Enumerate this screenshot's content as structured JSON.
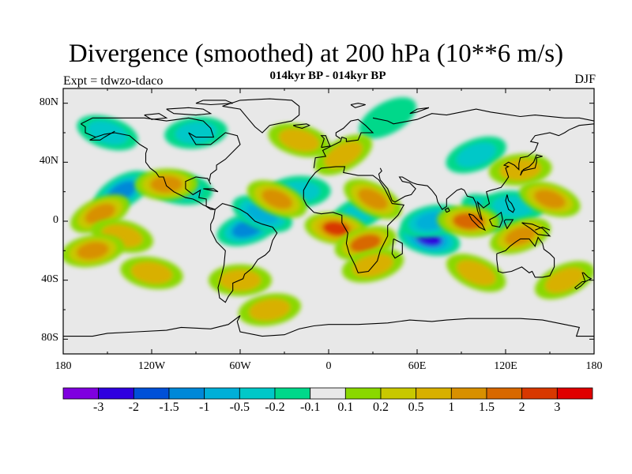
{
  "title": "Divergence (smoothed) at 200 hPa (10**6 m/s)",
  "subtitle": "014kyr BP - 014kyr BP",
  "experiment": "Expt = tdwzo-tdaco",
  "season": "DJF",
  "map": {
    "projection": "cylindrical-equidistant",
    "lon_range": [
      -180,
      180
    ],
    "lat_range": [
      -90,
      90
    ],
    "background_color": "#e8e8e8",
    "coastline_color": "#000000"
  },
  "axes": {
    "y_ticks": [
      "80N",
      "40N",
      "0",
      "40S",
      "80S"
    ],
    "x_ticks": [
      "180",
      "120W",
      "60W",
      "0",
      "60E",
      "120E",
      "180"
    ]
  },
  "colorbar": {
    "colors": [
      "#7f00df",
      "#2f00df",
      "#0050d8",
      "#0088d8",
      "#00afd8",
      "#00c8c8",
      "#00d88a",
      "#e8e8e8",
      "#8ad800",
      "#c8c800",
      "#d8b000",
      "#d89000",
      "#d86800",
      "#d83800",
      "#df0000"
    ],
    "labels": [
      "-3",
      "-2",
      "-1.5",
      "-1",
      "-0.5",
      "-0.2",
      "-0.1",
      "0.1",
      "0.2",
      "0.5",
      "1",
      "1.5",
      "2",
      "3"
    ]
  },
  "anomaly_blobs": [
    {
      "lon": -140,
      "lat": 20,
      "value": -1.5
    },
    {
      "lon": -100,
      "lat": 22,
      "value": -0.5
    },
    {
      "lon": -55,
      "lat": -5,
      "value": -1.5
    },
    {
      "lon": -45,
      "lat": 5,
      "value": -1
    },
    {
      "lon": -20,
      "lat": 20,
      "value": -0.5
    },
    {
      "lon": 20,
      "lat": 5,
      "value": -0.5
    },
    {
      "lon": 68,
      "lat": -12,
      "value": -3
    },
    {
      "lon": 70,
      "lat": 0,
      "value": -1
    },
    {
      "lon": 110,
      "lat": 5,
      "value": -1
    },
    {
      "lon": 125,
      "lat": 10,
      "value": -0.5
    },
    {
      "lon": 100,
      "lat": 45,
      "value": -0.5
    },
    {
      "lon": -150,
      "lat": 60,
      "value": -0.5
    },
    {
      "lon": -90,
      "lat": 60,
      "value": -0.5
    },
    {
      "lon": 40,
      "lat": 70,
      "value": -0.2
    },
    {
      "lon": 5,
      "lat": -5,
      "value": 2
    },
    {
      "lon": 25,
      "lat": -15,
      "value": 1.5
    },
    {
      "lon": -35,
      "lat": 15,
      "value": 1
    },
    {
      "lon": -110,
      "lat": 25,
      "value": 1
    },
    {
      "lon": -155,
      "lat": 5,
      "value": 1
    },
    {
      "lon": -140,
      "lat": -10,
      "value": 0.5
    },
    {
      "lon": -160,
      "lat": -20,
      "value": 1
    },
    {
      "lon": 30,
      "lat": 15,
      "value": 1
    },
    {
      "lon": 95,
      "lat": 0,
      "value": 1.5
    },
    {
      "lon": 130,
      "lat": -10,
      "value": 1
    },
    {
      "lon": 150,
      "lat": 15,
      "value": 1
    },
    {
      "lon": 130,
      "lat": 35,
      "value": 0.5
    },
    {
      "lon": 10,
      "lat": 45,
      "value": 0.5
    },
    {
      "lon": -120,
      "lat": -35,
      "value": 0.5
    },
    {
      "lon": 30,
      "lat": -30,
      "value": 0.5
    },
    {
      "lon": 100,
      "lat": -35,
      "value": 0.5
    },
    {
      "lon": -60,
      "lat": -40,
      "value": 0.5
    },
    {
      "lon": 160,
      "lat": -40,
      "value": 0.5
    },
    {
      "lon": -20,
      "lat": 55,
      "value": 0.5
    },
    {
      "lon": -40,
      "lat": -60,
      "value": 0.5
    }
  ]
}
